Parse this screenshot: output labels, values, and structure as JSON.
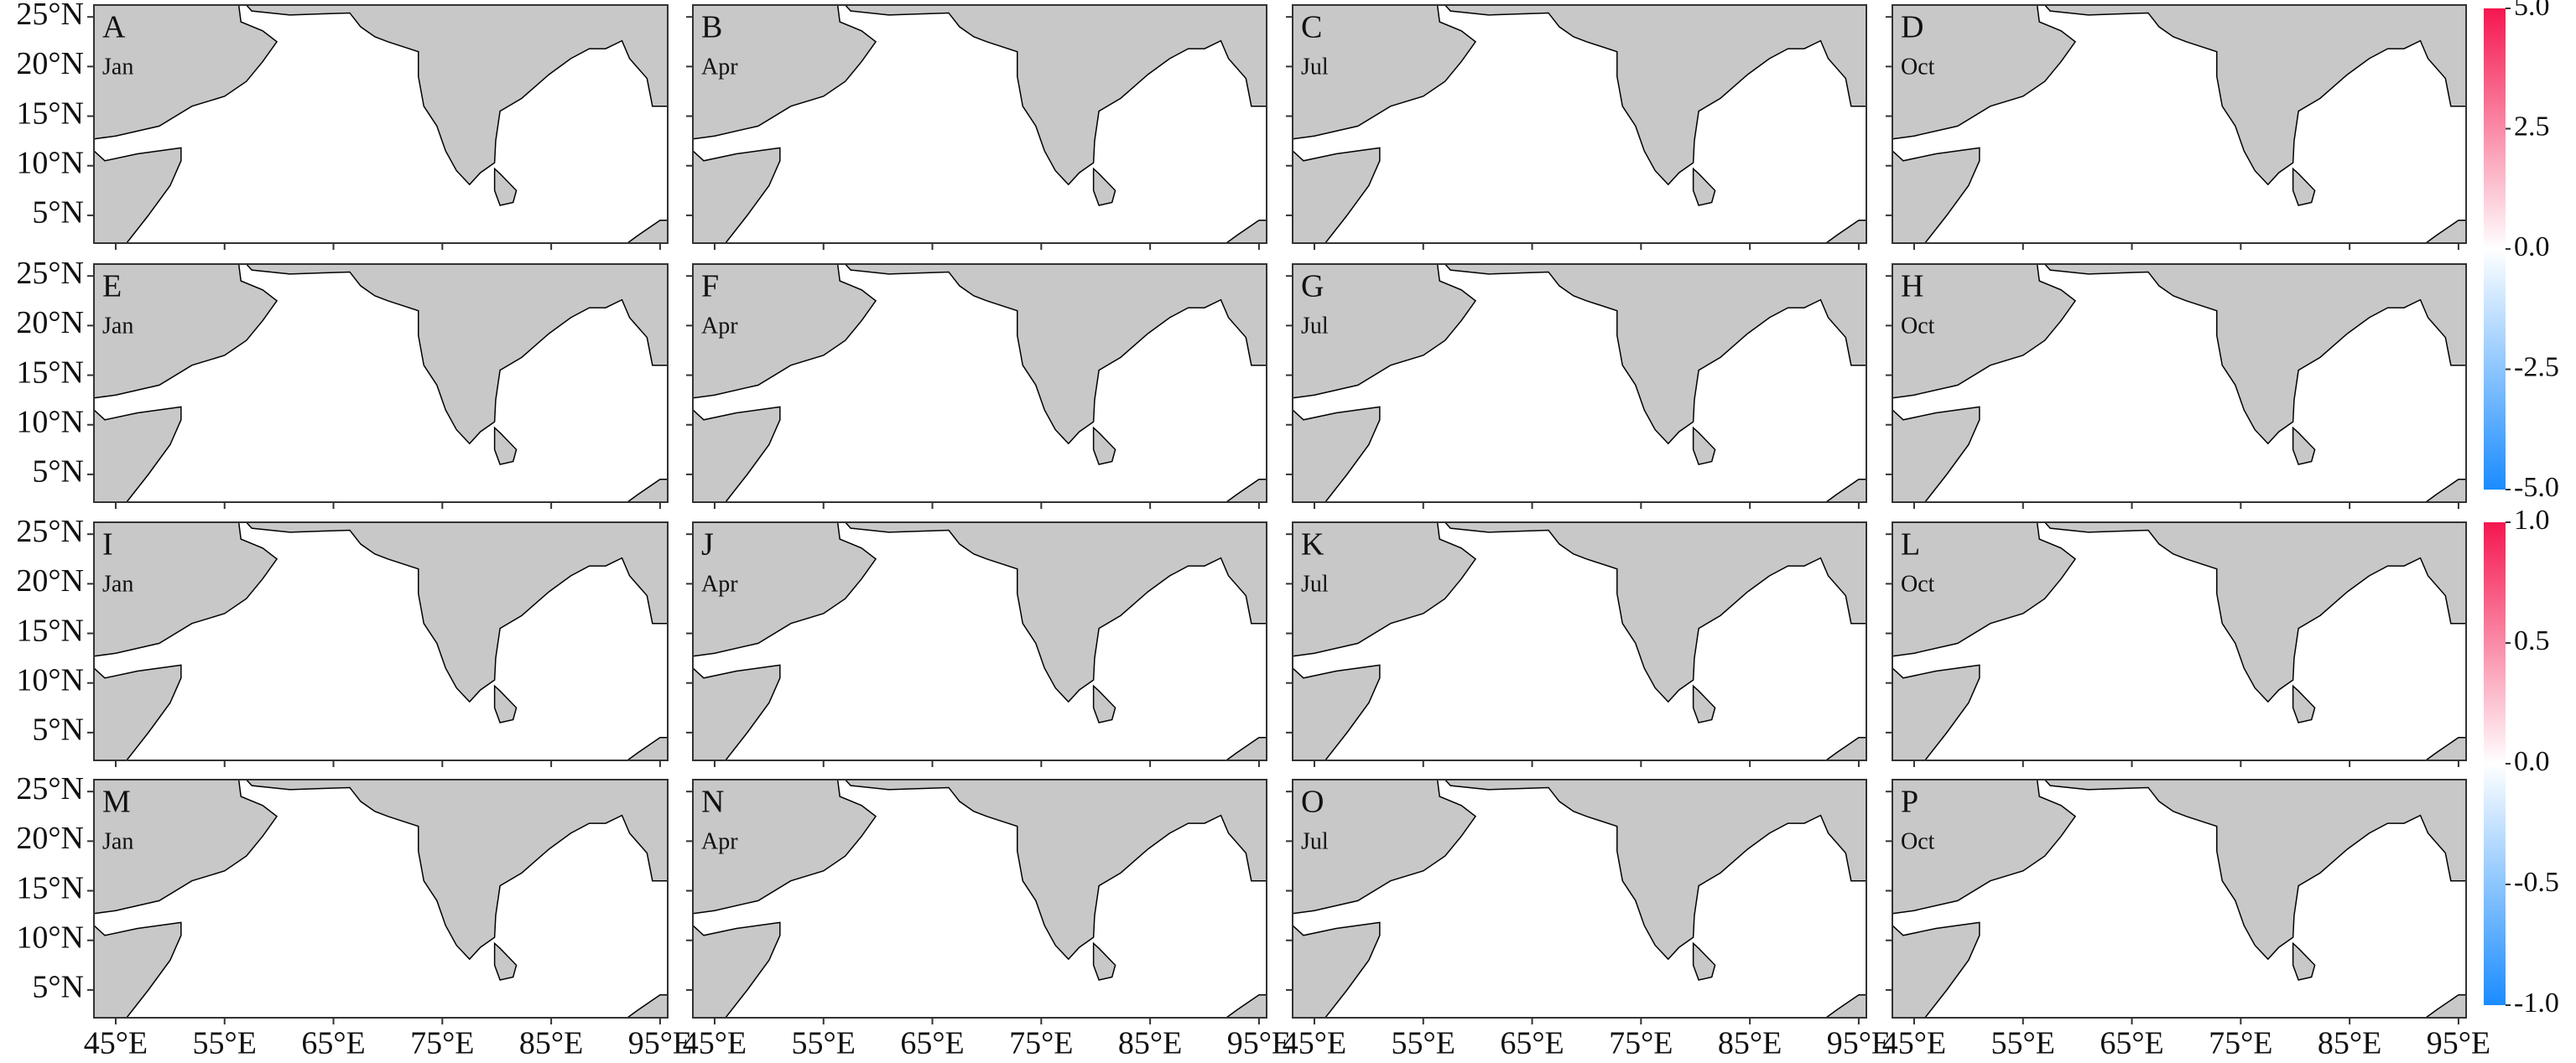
{
  "map_figure": {
    "xlim": [
      43,
      95.7
    ],
    "ylim": [
      2.2,
      26.2
    ],
    "xticks": [
      {
        "value": 45,
        "label": "45°E"
      },
      {
        "value": 55,
        "label": "55°E"
      },
      {
        "value": 65,
        "label": "65°E"
      },
      {
        "value": 75,
        "label": "75°E"
      },
      {
        "value": 85,
        "label": "85°E"
      },
      {
        "value": 95,
        "label": "95°E"
      }
    ],
    "yticks": [
      {
        "value": 5,
        "label": "5°N"
      },
      {
        "value": 10,
        "label": "10°N"
      },
      {
        "value": 15,
        "label": "15°N"
      },
      {
        "value": 20,
        "label": "20°N"
      },
      {
        "value": 25,
        "label": "25°N"
      }
    ],
    "land_color": "#c8c8c8",
    "panels": [
      {
        "label": "A",
        "month": "Jan"
      },
      {
        "label": "B",
        "month": "Apr"
      },
      {
        "label": "C",
        "month": "Jul"
      },
      {
        "label": "D",
        "month": "Oct"
      },
      {
        "label": "E",
        "month": "Jan"
      },
      {
        "label": "F",
        "month": "Apr"
      },
      {
        "label": "G",
        "month": "Jul"
      },
      {
        "label": "H",
        "month": "Oct"
      },
      {
        "label": "I",
        "month": "Jan"
      },
      {
        "label": "J",
        "month": "Apr"
      },
      {
        "label": "K",
        "month": "Jul"
      },
      {
        "label": "L",
        "month": "Oct"
      },
      {
        "label": "M",
        "month": "Jan"
      },
      {
        "label": "N",
        "month": "Apr"
      },
      {
        "label": "O",
        "month": "Jul"
      },
      {
        "label": "P",
        "month": "Oct"
      }
    ],
    "colormap": [
      "#1a8cff",
      "#ffffff",
      "#f5164f"
    ],
    "colorbars": [
      {
        "lim": [
          -5,
          5
        ],
        "ticks": [
          {
            "value": 5,
            "label": "5.0"
          },
          {
            "value": 2.5,
            "label": "2.5"
          },
          {
            "value": 0,
            "label": "0.0"
          },
          {
            "value": -2.5,
            "label": "-2.5"
          },
          {
            "value": -5,
            "label": "-5.0"
          }
        ]
      },
      {
        "lim": [
          -1,
          1
        ],
        "ticks": [
          {
            "value": 1,
            "label": "1.0"
          },
          {
            "value": 0.5,
            "label": "0.5"
          },
          {
            "value": 0,
            "label": "0.0"
          },
          {
            "value": -0.5,
            "label": "-0.5"
          },
          {
            "value": -1,
            "label": "-1.0"
          }
        ]
      }
    ]
  }
}
